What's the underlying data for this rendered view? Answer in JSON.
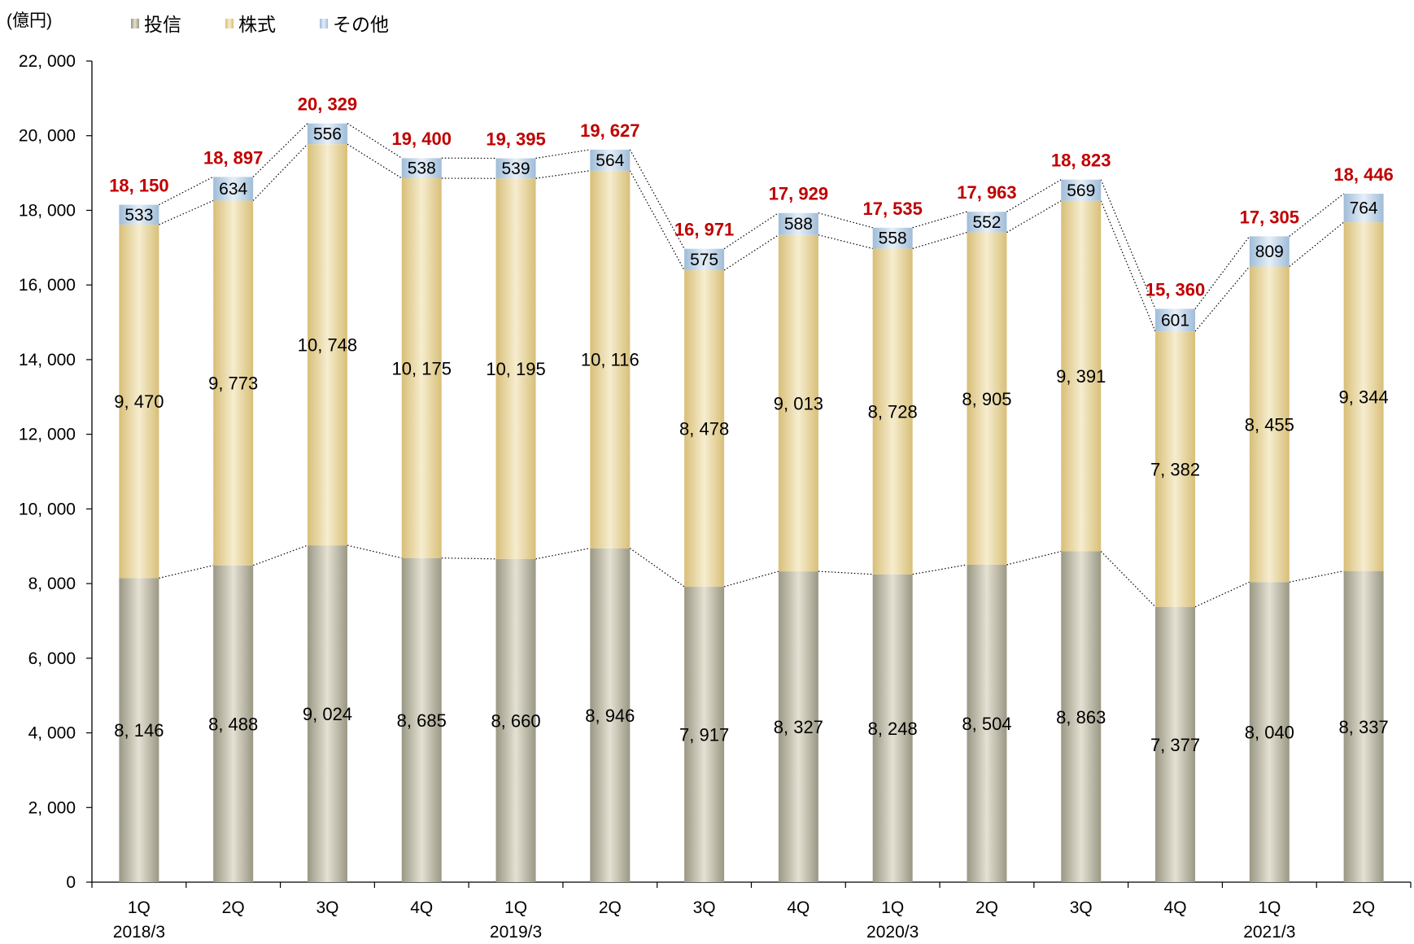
{
  "chart_data": {
    "type": "bar",
    "stacked": true,
    "y_unit_label": "(億円)",
    "ylim": [
      0,
      22000
    ],
    "yticks": [
      0,
      2000,
      4000,
      6000,
      8000,
      10000,
      12000,
      14000,
      16000,
      18000,
      20000,
      22000
    ],
    "ytick_labels": [
      "0",
      "2, 000",
      "4, 000",
      "6, 000",
      "8, 000",
      "10, 000",
      "12, 000",
      "14, 000",
      "16, 000",
      "18, 000",
      "20, 000",
      "22, 000"
    ],
    "categories": [
      "1Q",
      "2Q",
      "3Q",
      "4Q",
      "1Q",
      "2Q",
      "3Q",
      "4Q",
      "1Q",
      "2Q",
      "3Q",
      "4Q",
      "1Q",
      "2Q"
    ],
    "year_labels": [
      {
        "index": 0,
        "label": "2018/3"
      },
      {
        "index": 4,
        "label": "2019/3"
      },
      {
        "index": 8,
        "label": "2020/3"
      },
      {
        "index": 12,
        "label": "2021/3"
      }
    ],
    "legend_position": "top-left",
    "series": [
      {
        "name": "投信",
        "color": "#b8b5a6",
        "values": [
          8146,
          8488,
          9024,
          8685,
          8660,
          8946,
          7917,
          8327,
          8248,
          8504,
          8863,
          7377,
          8040,
          8337
        ],
        "labels": [
          "8, 146",
          "8, 488",
          "9, 024",
          "8, 685",
          "8, 660",
          "8, 946",
          "7, 917",
          "8, 327",
          "8, 248",
          "8, 504",
          "8, 863",
          "7, 377",
          "8, 040",
          "8, 337"
        ]
      },
      {
        "name": "株式",
        "color": "#e6d39c",
        "values": [
          9470,
          9773,
          10748,
          10175,
          10195,
          10116,
          8478,
          9013,
          8728,
          8905,
          9391,
          7382,
          8455,
          9344
        ],
        "labels": [
          "9, 470",
          "9, 773",
          "10, 748",
          "10, 175",
          "10, 195",
          "10, 116",
          "8, 478",
          "9, 013",
          "8, 728",
          "8, 905",
          "9, 391",
          "7, 382",
          "8, 455",
          "9, 344"
        ]
      },
      {
        "name": "その他",
        "color": "#bcd2e6",
        "values": [
          533,
          634,
          556,
          538,
          539,
          564,
          575,
          588,
          558,
          552,
          569,
          601,
          809,
          764
        ],
        "labels": [
          "533",
          "634",
          "556",
          "538",
          "539",
          "564",
          "575",
          "588",
          "558",
          "552",
          "569",
          "601",
          "809",
          "764"
        ]
      }
    ],
    "totals": [
      18150,
      18897,
      20329,
      19400,
      19395,
      19627,
      16971,
      17929,
      17535,
      17963,
      18823,
      15360,
      17305,
      18446
    ],
    "total_labels": [
      "18, 150",
      "18, 897",
      "20, 329",
      "19, 400",
      "19, 395",
      "19, 627",
      "16, 971",
      "17, 929",
      "17, 535",
      "17, 963",
      "18, 823",
      "15, 360",
      "17, 305",
      "18, 446"
    ],
    "total_label_color": "#c00000"
  }
}
